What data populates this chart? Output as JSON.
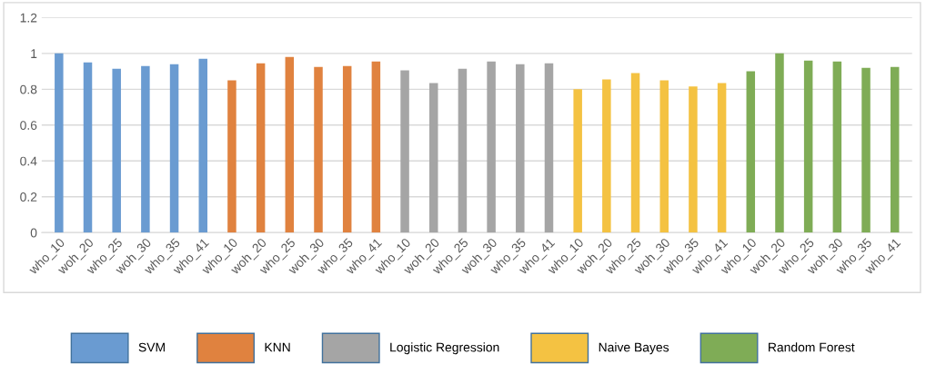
{
  "chart_data": {
    "type": "bar",
    "categories": [
      "who_10",
      "woh_20",
      "who_25",
      "woh_30",
      "who_35",
      "who_41",
      "who_10",
      "woh_20",
      "who_25",
      "woh_30",
      "who_35",
      "who_41",
      "who_10",
      "woh_20",
      "who_25",
      "woh_30",
      "who_35",
      "who_41",
      "who_10",
      "woh_20",
      "who_25",
      "woh_30",
      "who_35",
      "who_41",
      "who_10",
      "woh_20",
      "who_25",
      "woh_30",
      "who_35",
      "who_41"
    ],
    "series": [
      {
        "name": "SVM",
        "color": "#6a9bd1",
        "values": [
          1.0,
          0.95,
          0.915,
          0.93,
          0.94,
          0.97,
          null,
          null,
          null,
          null,
          null,
          null,
          null,
          null,
          null,
          null,
          null,
          null,
          null,
          null,
          null,
          null,
          null,
          null,
          null,
          null,
          null,
          null,
          null,
          null
        ]
      },
      {
        "name": "KNN",
        "color": "#e0823f",
        "values": [
          null,
          null,
          null,
          null,
          null,
          null,
          0.85,
          0.945,
          0.98,
          0.925,
          0.93,
          0.955,
          null,
          null,
          null,
          null,
          null,
          null,
          null,
          null,
          null,
          null,
          null,
          null,
          null,
          null,
          null,
          null,
          null,
          null
        ]
      },
      {
        "name": "Logistic Regression",
        "color": "#a5a5a5",
        "values": [
          null,
          null,
          null,
          null,
          null,
          null,
          null,
          null,
          null,
          null,
          null,
          null,
          0.905,
          0.835,
          0.915,
          0.955,
          0.94,
          0.945,
          null,
          null,
          null,
          null,
          null,
          null,
          null,
          null,
          null,
          null,
          null,
          null
        ]
      },
      {
        "name": "Naive Bayes",
        "color": "#f4c242",
        "values": [
          null,
          null,
          null,
          null,
          null,
          null,
          null,
          null,
          null,
          null,
          null,
          null,
          null,
          null,
          null,
          null,
          null,
          null,
          0.8,
          0.855,
          0.89,
          0.85,
          0.815,
          0.835,
          null,
          null,
          null,
          null,
          null,
          null
        ]
      },
      {
        "name": "Random Forest",
        "color": "#7fac56",
        "values": [
          null,
          null,
          null,
          null,
          null,
          null,
          null,
          null,
          null,
          null,
          null,
          null,
          null,
          null,
          null,
          null,
          null,
          null,
          null,
          null,
          null,
          null,
          null,
          null,
          0.9,
          1.0,
          0.96,
          0.955,
          0.92,
          0.925
        ]
      }
    ],
    "ylim": [
      0,
      1.2
    ],
    "yticks": [
      0,
      {
        "value": 0.2,
        "label": "0.2"
      },
      {
        "value": 0.4,
        "label": "0.4"
      },
      {
        "value": 0.6,
        "label": "0.6"
      },
      {
        "value": 0.8,
        "label": "0.8"
      },
      1,
      {
        "value": 1.2,
        "label": "1.2"
      }
    ],
    "grid": "y",
    "legend": "bottom"
  }
}
